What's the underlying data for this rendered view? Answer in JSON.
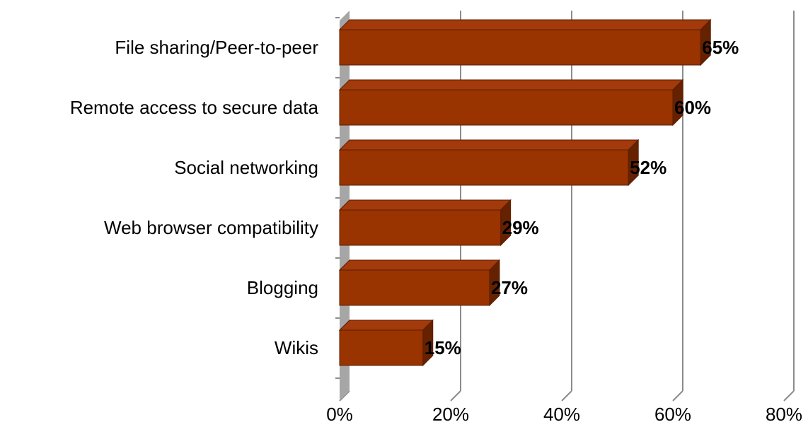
{
  "chart_data": {
    "type": "bar",
    "orientation": "horizontal",
    "style": "3d",
    "categories": [
      "File sharing/Peer-to-peer",
      "Remote access to secure data",
      "Social networking",
      "Web browser compatibility",
      "Blogging",
      "Wikis"
    ],
    "values": [
      65,
      60,
      52,
      29,
      27,
      15
    ],
    "data_labels": [
      "65%",
      "60%",
      "52%",
      "29%",
      "27%",
      "15%"
    ],
    "x_ticks": [
      "0%",
      "20%",
      "40%",
      "60%",
      "80%"
    ],
    "xlim": [
      0,
      80
    ],
    "unit": "%",
    "title": "",
    "xlabel": "",
    "ylabel": "",
    "grid": true,
    "legend": "none",
    "colors": {
      "bar_front": "#993300",
      "bar_top": "#a33a0c",
      "bar_side": "#662200",
      "bar_edge": "#5a1e00",
      "wall": "#a6a6a6",
      "gridline": "#8c8c8c"
    }
  }
}
